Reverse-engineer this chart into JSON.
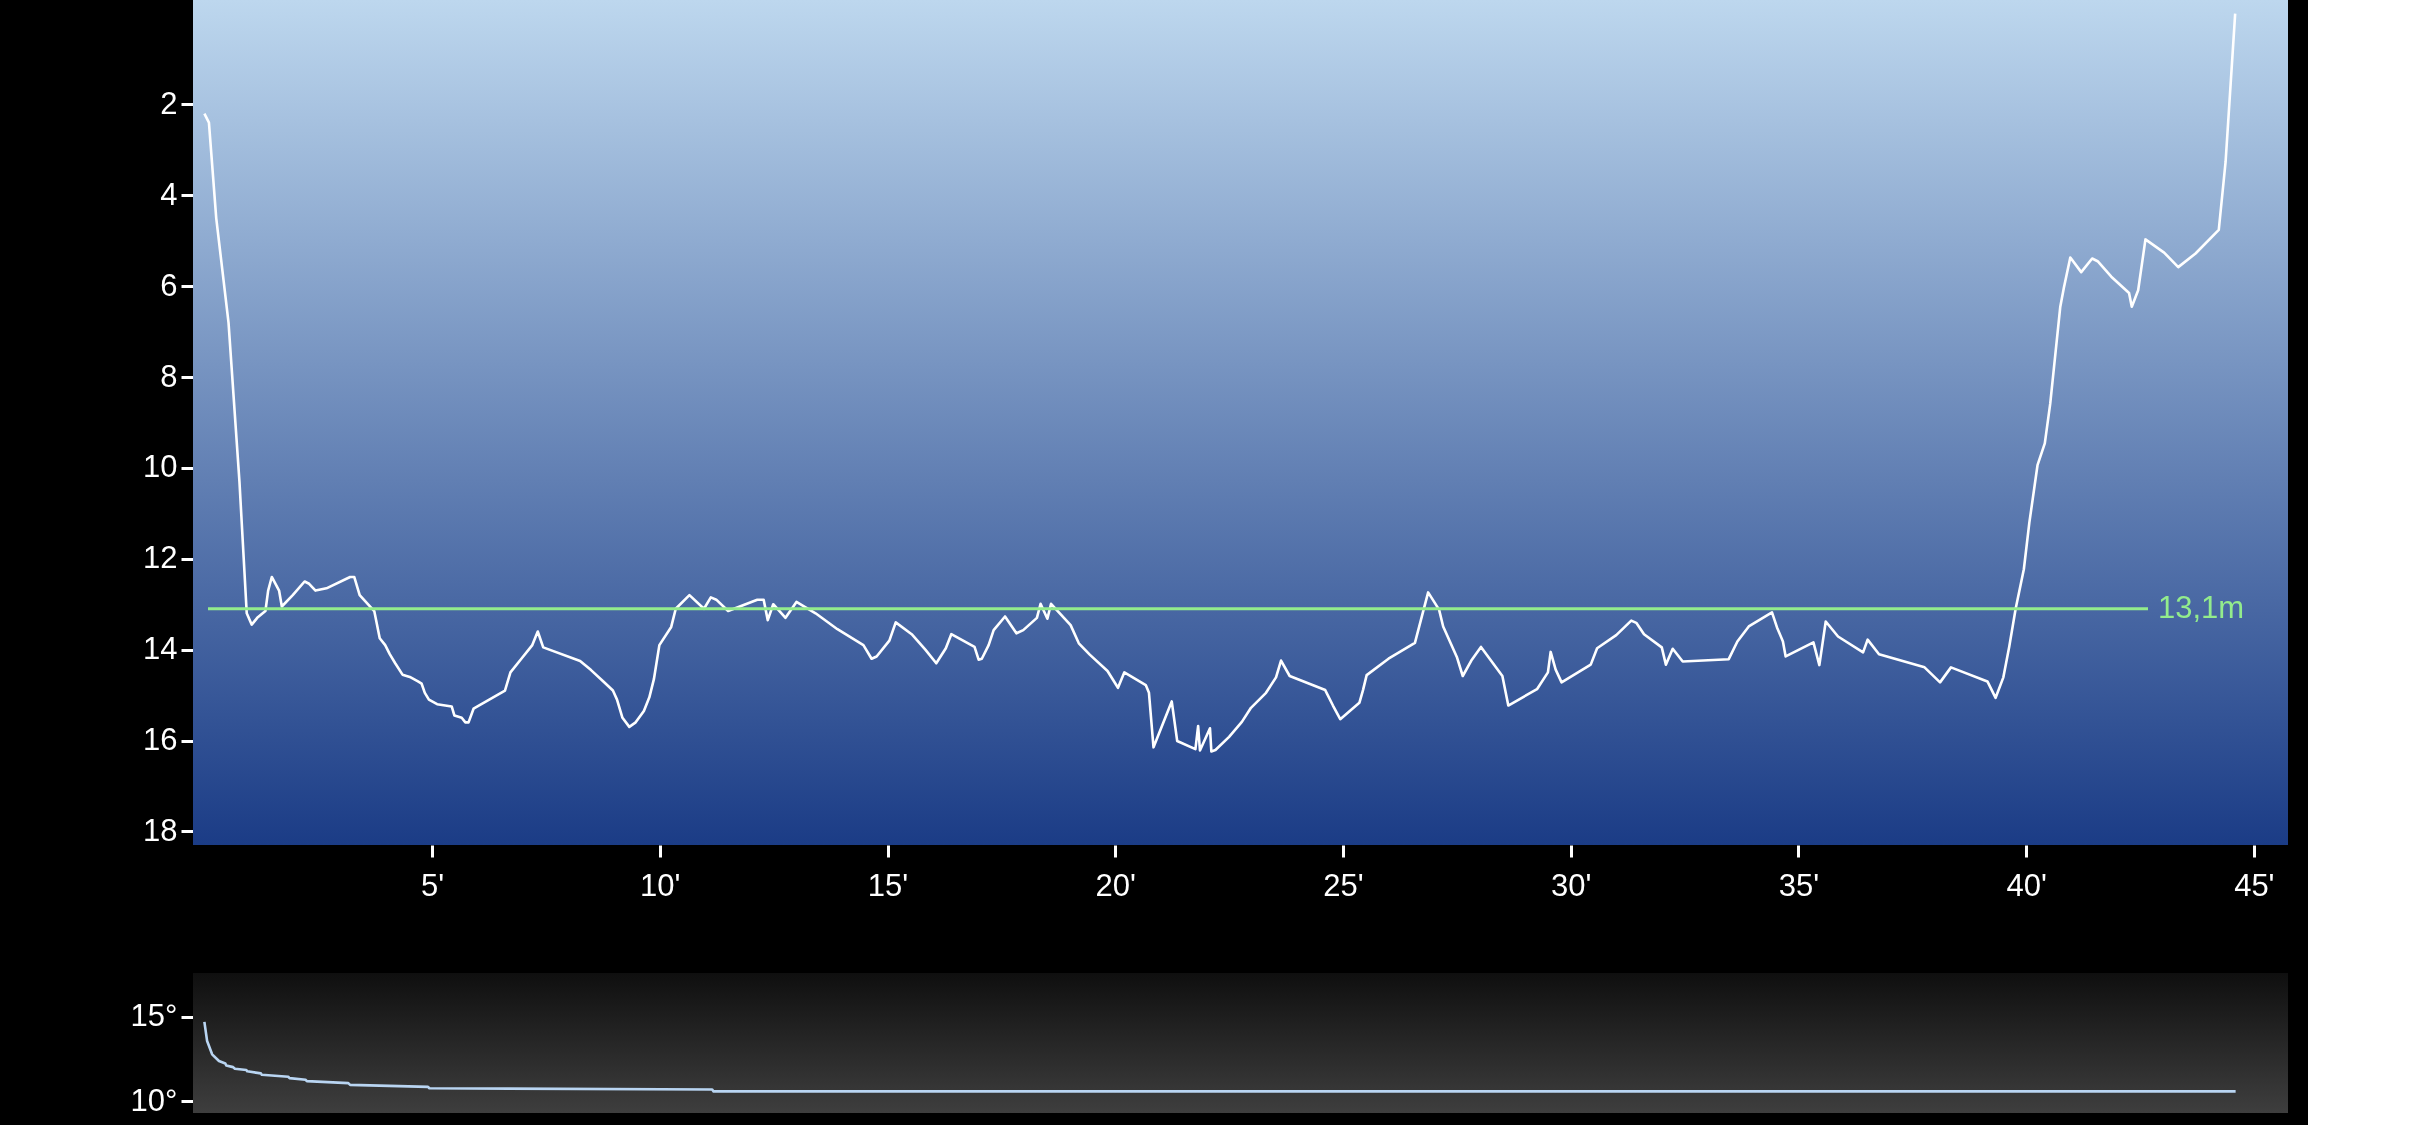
{
  "chart_data": [
    {
      "type": "line",
      "xlim": [
        -0.25,
        45.75
      ],
      "ylim": [
        18.3,
        -0.3
      ],
      "xticks": [
        {
          "value": 5,
          "label": "5'"
        },
        {
          "value": 10,
          "label": "10'"
        },
        {
          "value": 15,
          "label": "15'"
        },
        {
          "value": 20,
          "label": "20'"
        },
        {
          "value": 25,
          "label": "25'"
        },
        {
          "value": 30,
          "label": "30'"
        },
        {
          "value": 35,
          "label": "35'"
        },
        {
          "value": 40,
          "label": "40'"
        },
        {
          "value": 45,
          "label": "45'"
        }
      ],
      "yticks": [
        2,
        4,
        6,
        8,
        10,
        12,
        14,
        16,
        18
      ],
      "grid": false,
      "marker": "none",
      "line_style": "solid",
      "ref_lines": [
        {
          "axis": "y",
          "value": 13.1,
          "label": "13,1m",
          "color": "#93ec8c"
        }
      ],
      "series": [
        {
          "color": "#ffffff",
          "x": [
            0,
            0.1,
            0.26,
            0.53,
            0.77,
            0.93,
            1.04,
            1.16,
            1.34,
            1.4,
            1.48,
            1.64,
            1.7,
            1.94,
            2.2,
            2.3,
            2.44,
            2.68,
            3.2,
            3.29,
            3.41,
            3.73,
            3.85,
            3.97,
            4.07,
            4.19,
            4.35,
            4.51,
            4.69,
            4.77,
            4.84,
            4.93,
            5.11,
            5.43,
            5.49,
            5.65,
            5.73,
            5.8,
            5.91,
            6.6,
            6.72,
            6.96,
            7.2,
            7.32,
            7.44,
            8.25,
            8.49,
            8.76,
            8.97,
            9.06,
            9.18,
            9.33,
            9.47,
            9.65,
            9.77,
            9.87,
            9.99,
            10.25,
            10.35,
            10.65,
            10.97,
            11.12,
            11.24,
            11.5,
            12.14,
            12.28,
            12.37,
            12.49,
            12.76,
            13.0,
            13.42,
            13.9,
            14.47,
            14.65,
            14.76,
            15.04,
            15.18,
            15.53,
            15.83,
            16.07,
            16.28,
            16.4,
            16.91,
            17.0,
            17.07,
            17.22,
            17.33,
            17.58,
            17.83,
            17.98,
            18.28,
            18.36,
            18.51,
            18.59,
            19.02,
            19.2,
            19.44,
            19.83,
            20.06,
            20.2,
            20.67,
            20.74,
            20.84,
            21.24,
            21.36,
            21.76,
            21.82,
            21.86,
            22.08,
            22.11,
            22.2,
            22.5,
            22.78,
            22.98,
            23.31,
            23.53,
            23.64,
            23.83,
            24.61,
            24.78,
            24.94,
            25.36,
            25.44,
            25.52,
            26.0,
            26.58,
            26.87,
            27.11,
            27.2,
            27.5,
            27.63,
            27.83,
            28.03,
            28.5,
            28.63,
            29.26,
            29.5,
            29.56,
            29.67,
            29.8,
            30.44,
            30.58,
            31.0,
            31.33,
            31.44,
            31.61,
            32.0,
            32.09,
            32.24,
            32.46,
            33.47,
            33.66,
            33.91,
            34.42,
            34.53,
            34.66,
            34.72,
            35.33,
            35.46,
            35.6,
            35.87,
            36.42,
            36.52,
            36.77,
            37.77,
            38.11,
            38.35,
            39.15,
            39.33,
            39.5,
            39.63,
            39.77,
            39.95,
            40.07,
            40.25,
            40.41,
            40.53,
            40.75,
            40.83,
            40.97,
            41.21,
            41.45,
            41.57,
            41.87,
            42.26,
            42.32,
            42.46,
            42.62,
            43.03,
            43.34,
            43.72,
            44.23,
            44.38,
            44.52,
            44.59
          ],
          "values": [
            2.2,
            2.4,
            4.5,
            6.8,
            10.3,
            13.2,
            13.45,
            13.3,
            13.15,
            12.7,
            12.4,
            12.7,
            13.05,
            12.8,
            12.5,
            12.55,
            12.7,
            12.65,
            12.4,
            12.4,
            12.8,
            13.15,
            13.75,
            13.9,
            14.1,
            14.3,
            14.55,
            14.6,
            14.7,
            14.75,
            14.95,
            15.1,
            15.2,
            15.25,
            15.45,
            15.5,
            15.6,
            15.6,
            15.3,
            14.9,
            14.5,
            14.2,
            13.9,
            13.6,
            13.95,
            14.25,
            14.45,
            14.7,
            14.9,
            15.1,
            15.5,
            15.7,
            15.6,
            15.35,
            15.05,
            14.65,
            13.9,
            13.5,
            13.1,
            12.8,
            13.1,
            12.85,
            12.9,
            13.15,
            12.9,
            12.9,
            13.35,
            13.0,
            13.3,
            12.95,
            13.2,
            13.55,
            13.9,
            14.2,
            14.15,
            13.8,
            13.4,
            13.66,
            14.0,
            14.3,
            13.97,
            13.66,
            13.94,
            14.22,
            14.2,
            13.9,
            13.57,
            13.27,
            13.64,
            13.57,
            13.3,
            12.99,
            13.32,
            12.99,
            13.46,
            13.86,
            14.11,
            14.47,
            14.84,
            14.5,
            14.78,
            14.95,
            16.15,
            15.14,
            16.01,
            16.19,
            15.68,
            16.22,
            15.73,
            16.24,
            16.21,
            15.92,
            15.59,
            15.28,
            14.95,
            14.61,
            14.24,
            14.58,
            14.89,
            15.23,
            15.53,
            15.17,
            14.89,
            14.56,
            14.2,
            13.85,
            12.74,
            13.12,
            13.49,
            14.16,
            14.58,
            14.22,
            13.94,
            14.58,
            15.23,
            14.87,
            14.5,
            14.05,
            14.44,
            14.72,
            14.33,
            13.97,
            13.68,
            13.36,
            13.41,
            13.66,
            13.95,
            14.33,
            13.98,
            14.26,
            14.21,
            13.82,
            13.49,
            13.18,
            13.51,
            13.82,
            14.15,
            13.84,
            14.34,
            13.38,
            13.71,
            14.06,
            13.78,
            14.1,
            14.39,
            14.72,
            14.39,
            14.7,
            15.06,
            14.61,
            13.93,
            13.1,
            12.23,
            11.21,
            9.94,
            9.46,
            8.58,
            6.45,
            6.03,
            5.37,
            5.69,
            5.39,
            5.45,
            5.79,
            6.15,
            6.45,
            6.09,
            4.97,
            5.26,
            5.58,
            5.28,
            4.76,
            3.26,
            1.09,
            0.0
          ]
        }
      ]
    },
    {
      "type": "line",
      "xlim": [
        -0.25,
        45.75
      ],
      "ylim": [
        9.3,
        17.6
      ],
      "yticks": [
        {
          "value": 15,
          "label": "15°"
        },
        {
          "value": 10,
          "label": "10°"
        }
      ],
      "tick_labels": "y",
      "grid": false,
      "marker": "none",
      "line_style": "solid",
      "series": [
        {
          "color": "#b9d5f2",
          "x": [
            0,
            0.06,
            0.17,
            0.32,
            0.46,
            0.48,
            0.63,
            0.67,
            0.92,
            0.94,
            1.24,
            1.26,
            1.84,
            1.87,
            2.22,
            2.25,
            3.16,
            3.2,
            4.91,
            4.94,
            11.15,
            11.18,
            44.6
          ],
          "values": [
            14.7,
            13.57,
            12.78,
            12.38,
            12.24,
            12.12,
            12.02,
            11.92,
            11.85,
            11.77,
            11.65,
            11.57,
            11.45,
            11.37,
            11.27,
            11.19,
            11.07,
            10.97,
            10.85,
            10.77,
            10.69,
            10.58,
            10.58
          ]
        }
      ]
    }
  ]
}
